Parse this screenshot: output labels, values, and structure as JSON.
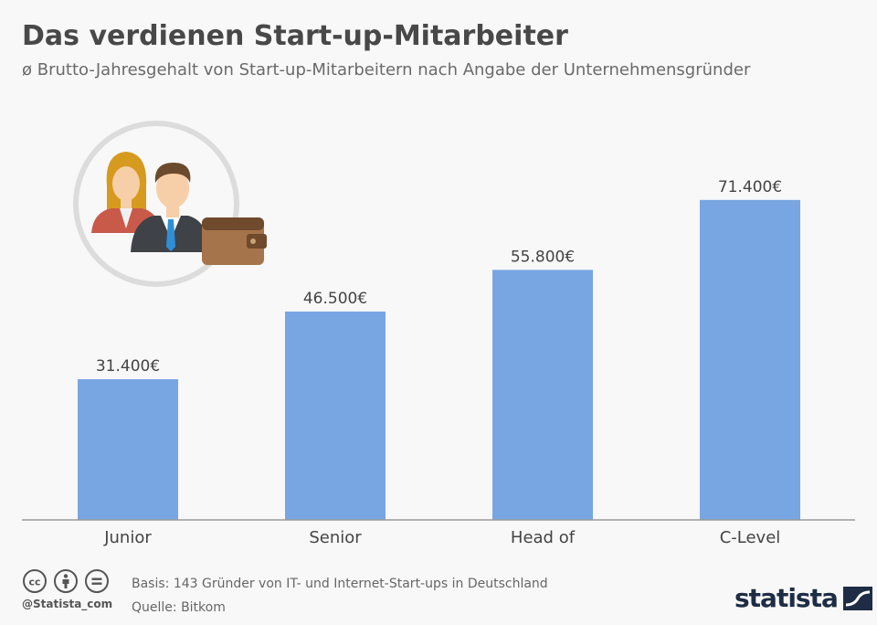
{
  "header": {
    "title": "Das verdienen Start-up-Mitarbeiter",
    "subtitle": "ø Brutto-Jahresgehalt von Start-up-Mitarbeitern nach Angabe der Unternehmensgründer"
  },
  "chart_data": {
    "type": "bar",
    "categories": [
      "Junior",
      "Senior",
      "Head of",
      "C-Level"
    ],
    "values": [
      31400,
      46500,
      55800,
      71400
    ],
    "value_labels": [
      "31.400€",
      "46.500€",
      "55.800€",
      "71.400€"
    ],
    "title": "Das verdienen Start-up-Mitarbeiter",
    "xlabel": "",
    "ylabel": "",
    "ylim": [
      0,
      80000
    ],
    "grid": false,
    "bar_color": "#78a6e3"
  },
  "footer": {
    "handle": "@Statista_com",
    "basis": "Basis: 143 Gründer von IT- und Internet-Start-ups in Deutschland",
    "source": "Quelle: Bitkom",
    "brand": "statista"
  },
  "icons": [
    "employees-wallet-icon",
    "cc-icon",
    "by-icon",
    "nd-icon",
    "statista-logo-icon"
  ]
}
